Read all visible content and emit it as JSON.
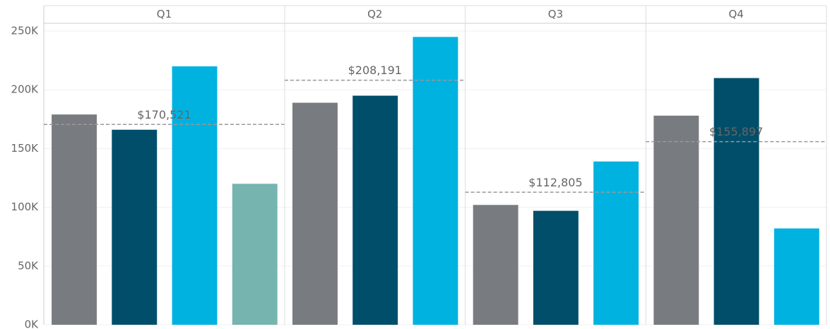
{
  "chart_data": {
    "type": "bar",
    "categories": [
      "Q1",
      "Q2",
      "Q3",
      "Q4"
    ],
    "series": [
      {
        "color": "#787c80",
        "values": [
          179000,
          189000,
          102000,
          178000
        ]
      },
      {
        "color": "#004e6a",
        "values": [
          166000,
          195000,
          97000,
          210000
        ]
      },
      {
        "color": "#00b2e0",
        "values": [
          220000,
          245000,
          139000,
          82000
        ]
      },
      {
        "color": "#76b4b0",
        "values": [
          120000,
          null,
          null,
          null
        ]
      }
    ],
    "reference_lines": {
      "values": [
        170521,
        208191,
        112805,
        155897
      ],
      "value_labels": [
        "$170,521",
        "$208,191",
        "$112,805",
        "$155,897"
      ]
    },
    "ylim": [
      0,
      250000
    ],
    "yticks": [
      {
        "value": 0,
        "label": "0K"
      },
      {
        "value": 50000,
        "label": "50K"
      },
      {
        "value": 100000,
        "label": "100K"
      },
      {
        "value": 150000,
        "label": "150K"
      },
      {
        "value": 200000,
        "label": "200K"
      },
      {
        "value": 250000,
        "label": "250K"
      }
    ],
    "grid": true
  }
}
